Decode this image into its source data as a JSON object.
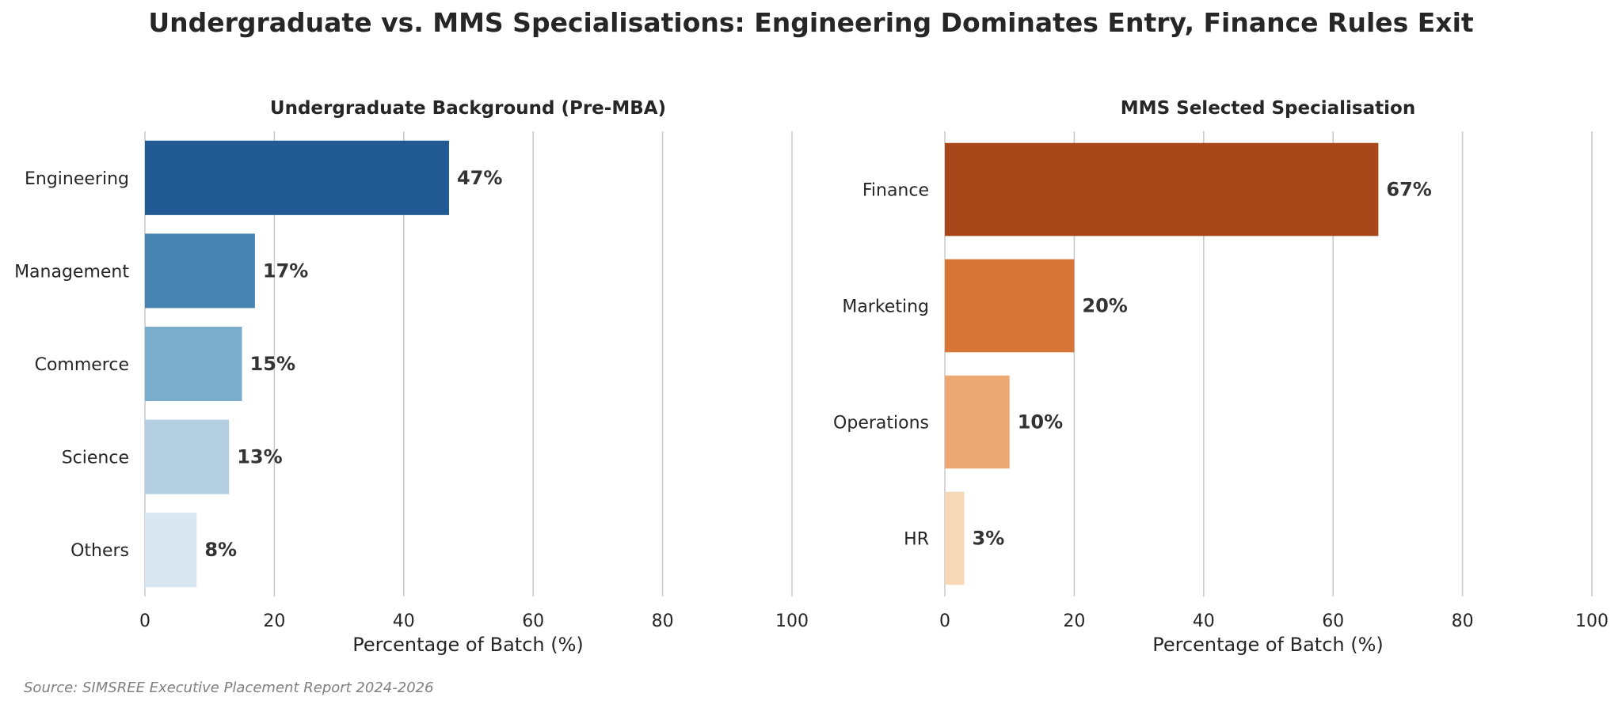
{
  "title": "Undergraduate vs. MMS Specialisations: Engineering Dominates Entry, Finance Rules Exit",
  "source": "Source: SIMSREE Executive Placement Report 2024-2026",
  "chart_data": [
    {
      "type": "bar",
      "orientation": "horizontal",
      "title": "Undergraduate Background (Pre-MBA)",
      "xlabel": "Percentage of Batch (%)",
      "ylabel": "",
      "xlim": [
        0,
        100
      ],
      "xticks": [
        0,
        20,
        40,
        60,
        80,
        100
      ],
      "grid": true,
      "categories": [
        "Engineering",
        "Management",
        "Commerce",
        "Science",
        "Others"
      ],
      "values": [
        47,
        17,
        15,
        13,
        8
      ],
      "value_labels": [
        "47%",
        "17%",
        "15%",
        "13%",
        "8%"
      ],
      "colors": [
        "#225b93",
        "#4884b2",
        "#7aadcc",
        "#b3cfe1",
        "#d9e7f3"
      ]
    },
    {
      "type": "bar",
      "orientation": "horizontal",
      "title": "MMS Selected Specialisation",
      "xlabel": "Percentage of Batch (%)",
      "ylabel": "",
      "xlim": [
        0,
        100
      ],
      "xticks": [
        0,
        20,
        40,
        60,
        80,
        100
      ],
      "grid": true,
      "categories": [
        "Finance",
        "Marketing",
        "Operations",
        "HR"
      ],
      "values": [
        67,
        20,
        10,
        3
      ],
      "value_labels": [
        "67%",
        "20%",
        "10%",
        "3%"
      ],
      "colors": [
        "#a8481a",
        "#d67535",
        "#eca973",
        "#f6d8b6"
      ]
    }
  ]
}
